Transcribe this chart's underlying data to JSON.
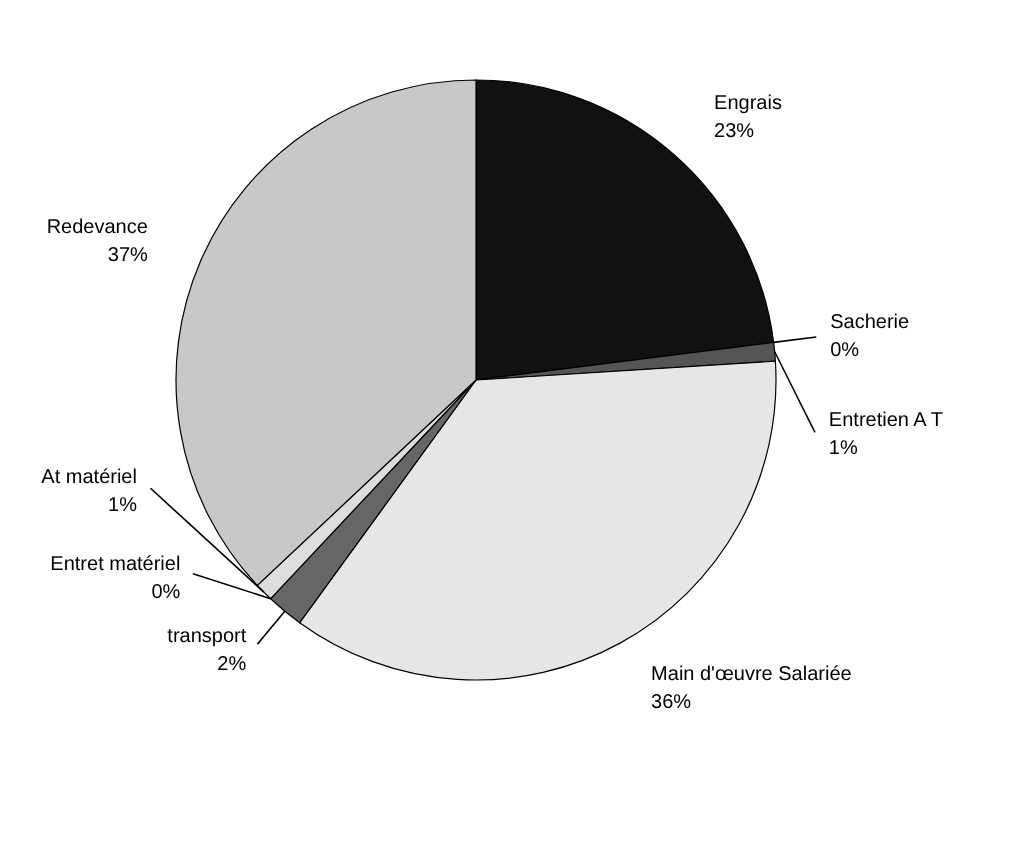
{
  "chart_data": {
    "type": "pie",
    "categories": [
      "Engrais",
      "Sacherie",
      "Entretien A T",
      "Main d'œuvre Salariée",
      "transport",
      "Entret matériel",
      "At matériel",
      "Redevance"
    ],
    "values": [
      23,
      0,
      1,
      36,
      2,
      0,
      1,
      37
    ],
    "value_labels": [
      "23%",
      "0%",
      "1%",
      "36%",
      "2%",
      "0%",
      "1%",
      "37%"
    ],
    "colors": [
      "#111111",
      "#ffffff",
      "#555555",
      "#e6e6e6",
      "#666666",
      "#ffffff",
      "#dddddd",
      "#c8c8c8"
    ]
  }
}
